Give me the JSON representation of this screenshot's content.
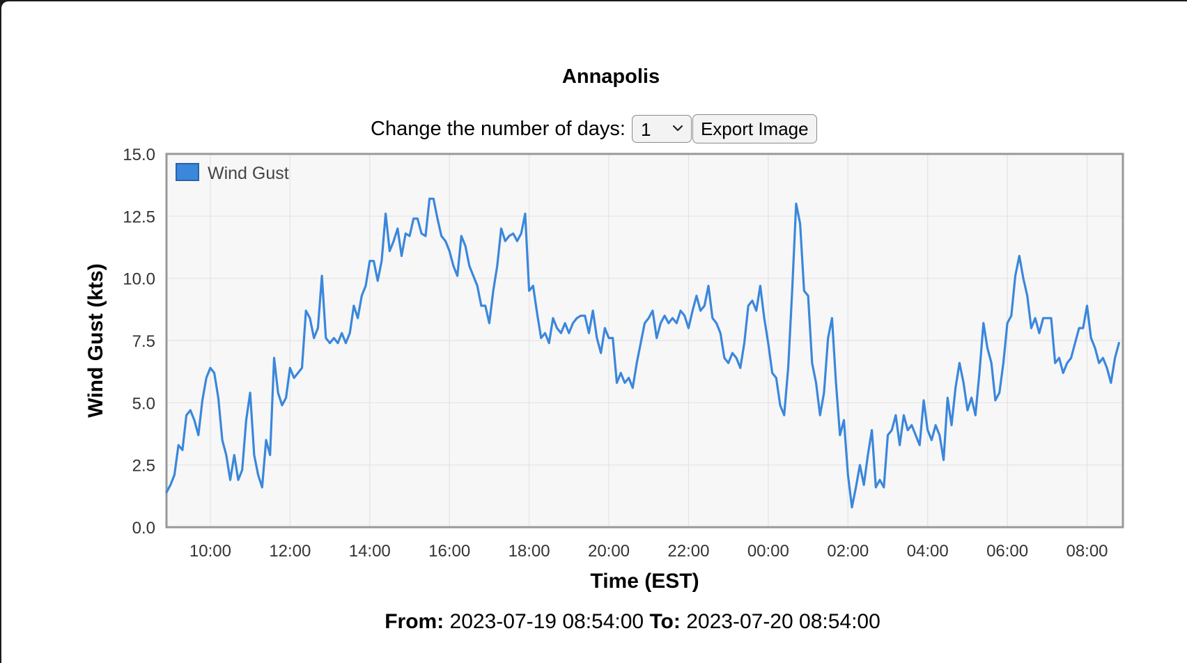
{
  "page": {
    "title": "Annapolis",
    "days_label": "Change the number of days:",
    "days_value": "1",
    "export_label": "Export Image",
    "from_label": "From:",
    "from_value": "2023-07-19 08:54:00",
    "to_label": "To:",
    "to_value": "2023-07-20 08:54:00"
  },
  "colors": {
    "series": "#3a87dc",
    "plot_background": "#f7f7f7",
    "frame": "#999999",
    "grid": "#e3e3e3"
  },
  "chart_data": {
    "type": "line",
    "title": "",
    "xlabel": "Time (EST)",
    "ylabel": "Wind Gust (kts)",
    "x_tick_labels": [
      "10:00",
      "12:00",
      "14:00",
      "16:00",
      "18:00",
      "20:00",
      "22:00",
      "00:00",
      "02:00",
      "04:00",
      "06:00",
      "08:00"
    ],
    "y_tick_labels": [
      "0.0",
      "2.5",
      "5.0",
      "7.5",
      "10.0",
      "12.5",
      "15.0"
    ],
    "ylim": [
      0,
      15
    ],
    "xlim": [
      "2023-07-19 08:54",
      "2023-07-20 08:54"
    ],
    "x_tick_times": [
      "2023-07-19 10:00",
      "2023-07-19 12:00",
      "2023-07-19 14:00",
      "2023-07-19 16:00",
      "2023-07-19 18:00",
      "2023-07-19 20:00",
      "2023-07-19 22:00",
      "2023-07-20 00:00",
      "2023-07-20 02:00",
      "2023-07-20 04:00",
      "2023-07-20 06:00",
      "2023-07-20 08:00"
    ],
    "grid": true,
    "legend_position": "top-left",
    "series": [
      {
        "name": "Wind Gust",
        "color": "#3a87dc",
        "start": "2023-07-19 08:54",
        "interval_minutes": 6,
        "values": [
          1.4,
          1.7,
          2.1,
          3.3,
          3.1,
          4.5,
          4.7,
          4.3,
          3.7,
          5.1,
          6.0,
          6.4,
          6.2,
          5.2,
          3.5,
          2.9,
          1.9,
          2.9,
          1.9,
          2.3,
          4.3,
          5.4,
          2.9,
          2.1,
          1.6,
          3.5,
          2.9,
          6.8,
          5.4,
          4.9,
          5.2,
          6.4,
          6.0,
          6.2,
          6.4,
          8.7,
          8.4,
          7.6,
          8.0,
          10.1,
          7.6,
          7.4,
          7.6,
          7.4,
          7.8,
          7.4,
          7.8,
          8.9,
          8.4,
          9.3,
          9.7,
          10.7,
          10.7,
          9.9,
          10.7,
          12.6,
          11.1,
          11.5,
          12.0,
          10.9,
          11.8,
          11.7,
          12.4,
          12.4,
          11.8,
          11.7,
          13.2,
          13.2,
          12.4,
          11.7,
          11.5,
          11.1,
          10.5,
          10.1,
          11.7,
          11.3,
          10.5,
          10.1,
          9.7,
          8.9,
          8.9,
          8.2,
          9.5,
          10.5,
          12.0,
          11.5,
          11.7,
          11.8,
          11.5,
          11.8,
          12.6,
          9.5,
          9.7,
          8.6,
          7.6,
          7.8,
          7.4,
          8.4,
          8.0,
          7.8,
          8.2,
          7.8,
          8.2,
          8.4,
          8.5,
          8.5,
          7.8,
          8.7,
          7.6,
          7.0,
          8.0,
          7.6,
          7.6,
          5.8,
          6.2,
          5.8,
          6.0,
          5.6,
          6.6,
          7.4,
          8.2,
          8.4,
          8.7,
          7.6,
          8.2,
          8.5,
          8.2,
          8.4,
          8.2,
          8.7,
          8.5,
          8.0,
          8.7,
          9.3,
          8.7,
          8.9,
          9.7,
          8.4,
          8.2,
          7.8,
          6.8,
          6.6,
          7.0,
          6.8,
          6.4,
          7.4,
          8.9,
          9.1,
          8.7,
          9.7,
          8.4,
          7.4,
          6.2,
          6.0,
          4.9,
          4.5,
          6.4,
          9.5,
          13.0,
          12.2,
          9.5,
          9.3,
          6.6,
          5.8,
          4.5,
          5.4,
          7.6,
          8.4,
          5.8,
          3.7,
          4.3,
          2.1,
          0.8,
          1.6,
          2.5,
          1.7,
          2.9,
          3.9,
          1.6,
          1.9,
          1.6,
          3.7,
          3.9,
          4.5,
          3.3,
          4.5,
          3.9,
          4.1,
          3.7,
          3.3,
          5.1,
          3.9,
          3.5,
          4.1,
          3.7,
          2.7,
          5.2,
          4.1,
          5.6,
          6.6,
          5.8,
          4.7,
          5.2,
          4.5,
          6.2,
          8.2,
          7.2,
          6.6,
          5.1,
          5.4,
          6.6,
          8.2,
          8.5,
          10.1,
          10.9,
          10.0,
          9.3,
          8.0,
          8.4,
          7.8,
          8.4,
          8.4,
          8.4,
          6.6,
          6.8,
          6.2,
          6.6,
          6.8,
          7.4,
          8.0,
          8.0,
          8.9,
          7.6,
          7.2,
          6.6,
          6.8,
          6.4,
          5.8,
          6.8,
          7.4
        ]
      }
    ]
  }
}
